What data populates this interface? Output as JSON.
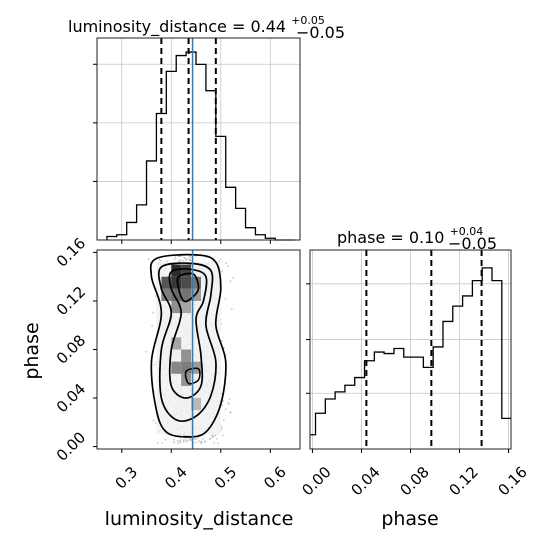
{
  "chart_data": [
    {
      "type": "histogram",
      "panel": "luminosity_distance marginal",
      "title": {
        "param": "luminosity_distance",
        "value": "0.44",
        "upper": "+0.05",
        "lower": "−0.05"
      },
      "xlim": [
        0.25,
        0.66
      ],
      "bin_edges": [
        0.27,
        0.29,
        0.31,
        0.33,
        0.35,
        0.37,
        0.39,
        0.41,
        0.43,
        0.45,
        0.47,
        0.49,
        0.51,
        0.53,
        0.55,
        0.57,
        0.59,
        0.61,
        0.63,
        0.65
      ],
      "counts": [
        2,
        3,
        10,
        20,
        45,
        72,
        96,
        105,
        107,
        100,
        85,
        59,
        30,
        18,
        7,
        3,
        1,
        0,
        0
      ],
      "quantiles": [
        0.38,
        0.435,
        0.49
      ],
      "truth": 0.443,
      "grid": true
    },
    {
      "type": "histogram",
      "panel": "phase marginal",
      "title": {
        "param": "phase",
        "value": "0.10",
        "upper": "+0.04",
        "lower": "−0.05"
      },
      "xlim": [
        -0.002,
        0.162
      ],
      "bin_edges": [
        -0.0015,
        0.0025,
        0.0065,
        0.0105,
        0.0145,
        0.0185,
        0.0225,
        0.0265,
        0.0305,
        0.0345,
        0.0385,
        0.0425,
        0.0465,
        0.0505,
        0.0545,
        0.0585,
        0.0625,
        0.0665,
        0.0705,
        0.0745,
        0.0785,
        0.0825,
        0.0865,
        0.0905,
        0.0945,
        0.0985,
        0.1025,
        0.1065,
        0.1105,
        0.1145,
        0.1185,
        0.1225,
        0.1265,
        0.1305,
        0.1345,
        0.1385,
        0.1425,
        0.1465,
        0.1505,
        0.1545,
        0.1585,
        0.1625
      ],
      "counts": [
        28,
        70,
        70,
        98,
        98,
        112,
        112,
        125,
        125,
        140,
        140,
        173,
        173,
        190,
        190,
        187,
        187,
        197,
        197,
        180,
        180,
        180,
        180,
        160,
        160,
        200,
        200,
        250,
        250,
        280,
        280,
        300,
        300,
        330,
        330,
        355,
        355,
        330,
        330,
        60,
        60
      ],
      "quantiles": [
        0.044,
        0.097,
        0.138
      ],
      "grid": true,
      "xticks": [
        "0.00",
        "0.04",
        "0.08",
        "0.12",
        "0.16"
      ],
      "xlabel": "phase"
    },
    {
      "type": "2d-density",
      "panel": "luminosity_distance vs phase",
      "xlabel": "luminosity_distance",
      "ylabel": "phase",
      "xlim": [
        0.25,
        0.66
      ],
      "ylim": [
        -0.002,
        0.162
      ],
      "xticks": [
        "0.3",
        "0.4",
        "0.5",
        "0.6"
      ],
      "yticks": [
        "0.00",
        "0.04",
        "0.08",
        "0.12",
        "0.16"
      ],
      "truth_x": 0.443,
      "density_cells": [
        {
          "x": 0.41,
          "y": 0.145,
          "level": 0.95
        },
        {
          "x": 0.43,
          "y": 0.145,
          "level": 0.85
        },
        {
          "x": 0.39,
          "y": 0.135,
          "level": 0.75
        },
        {
          "x": 0.41,
          "y": 0.135,
          "level": 0.9
        },
        {
          "x": 0.43,
          "y": 0.135,
          "level": 0.8
        },
        {
          "x": 0.45,
          "y": 0.135,
          "level": 0.6
        },
        {
          "x": 0.39,
          "y": 0.125,
          "level": 0.55
        },
        {
          "x": 0.41,
          "y": 0.125,
          "level": 0.65
        },
        {
          "x": 0.43,
          "y": 0.125,
          "level": 0.6
        },
        {
          "x": 0.45,
          "y": 0.125,
          "level": 0.4
        },
        {
          "x": 0.41,
          "y": 0.115,
          "level": 0.45
        },
        {
          "x": 0.43,
          "y": 0.115,
          "level": 0.35
        },
        {
          "x": 0.41,
          "y": 0.085,
          "level": 0.35
        },
        {
          "x": 0.43,
          "y": 0.075,
          "level": 0.45
        },
        {
          "x": 0.41,
          "y": 0.065,
          "level": 0.5
        },
        {
          "x": 0.43,
          "y": 0.065,
          "level": 0.55
        },
        {
          "x": 0.45,
          "y": 0.065,
          "level": 0.4
        },
        {
          "x": 0.43,
          "y": 0.055,
          "level": 0.45
        },
        {
          "x": 0.45,
          "y": 0.035,
          "level": 0.25
        }
      ],
      "contours": [
        [
          [
            0.37,
            0.155
          ],
          [
            0.45,
            0.158
          ],
          [
            0.49,
            0.152
          ],
          [
            0.5,
            0.13
          ],
          [
            0.49,
            0.1
          ],
          [
            0.51,
            0.07
          ],
          [
            0.5,
            0.035
          ],
          [
            0.47,
            0.012
          ],
          [
            0.43,
            0.008
          ],
          [
            0.39,
            0.012
          ],
          [
            0.37,
            0.03
          ],
          [
            0.36,
            0.07
          ],
          [
            0.38,
            0.11
          ],
          [
            0.36,
            0.14
          ]
        ],
        [
          [
            0.38,
            0.148
          ],
          [
            0.44,
            0.151
          ],
          [
            0.48,
            0.145
          ],
          [
            0.48,
            0.125
          ],
          [
            0.47,
            0.1
          ],
          [
            0.49,
            0.07
          ],
          [
            0.48,
            0.042
          ],
          [
            0.45,
            0.025
          ],
          [
            0.41,
            0.022
          ],
          [
            0.38,
            0.04
          ],
          [
            0.38,
            0.08
          ],
          [
            0.4,
            0.11
          ],
          [
            0.38,
            0.13
          ]
        ],
        [
          [
            0.4,
            0.144
          ],
          [
            0.44,
            0.146
          ],
          [
            0.47,
            0.14
          ],
          [
            0.465,
            0.12
          ],
          [
            0.45,
            0.105
          ],
          [
            0.46,
            0.075
          ],
          [
            0.46,
            0.05
          ],
          [
            0.43,
            0.04
          ],
          [
            0.4,
            0.05
          ],
          [
            0.4,
            0.08
          ],
          [
            0.42,
            0.11
          ],
          [
            0.4,
            0.13
          ]
        ],
        [
          [
            0.415,
            0.14
          ],
          [
            0.445,
            0.142
          ],
          [
            0.455,
            0.13
          ],
          [
            0.44,
            0.122
          ],
          [
            0.425,
            0.12
          ],
          [
            0.415,
            0.13
          ]
        ]
      ],
      "inner_loop": [
        [
          0.43,
          0.062
        ],
        [
          0.455,
          0.064
        ],
        [
          0.455,
          0.055
        ],
        [
          0.435,
          0.052
        ]
      ]
    }
  ]
}
